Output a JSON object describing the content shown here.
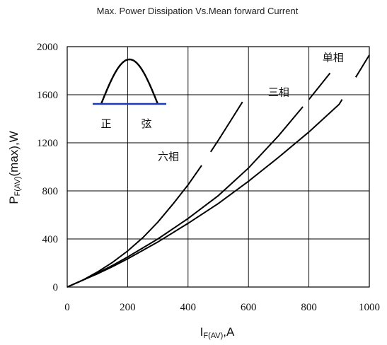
{
  "chart_data": {
    "type": "line",
    "title": "Max. Power Dissipation Vs.Mean forward Current",
    "xlabel_main": "I",
    "xlabel_sub": "F(AV)",
    "xlabel_tail": ",A",
    "ylabel_main": "P",
    "ylabel_sub": "F(AV)",
    "ylabel_tail": "(max),W",
    "xlim": [
      0,
      1000
    ],
    "ylim": [
      0,
      2000
    ],
    "xticks": [
      0,
      200,
      400,
      600,
      800,
      1000
    ],
    "yticks": [
      0,
      400,
      800,
      1200,
      1600,
      2000
    ],
    "xtick_labels": [
      "0",
      "200",
      "400",
      "600",
      "800",
      "1000"
    ],
    "ytick_labels": [
      "0",
      "400",
      "800",
      "1200",
      "1600",
      "2000"
    ],
    "grid": true,
    "series": [
      {
        "name": "单相",
        "label_at": [
          880,
          1880
        ],
        "gap": [
          910,
          955
        ],
        "points": [
          [
            0,
            0
          ],
          [
            50,
            55
          ],
          [
            100,
            110
          ],
          [
            150,
            170
          ],
          [
            200,
            235
          ],
          [
            300,
            375
          ],
          [
            400,
            530
          ],
          [
            500,
            695
          ],
          [
            600,
            880
          ],
          [
            700,
            1080
          ],
          [
            800,
            1290
          ],
          [
            900,
            1520
          ],
          [
            1000,
            1930
          ]
        ]
      },
      {
        "name": "三相",
        "label_at": [
          700,
          1590
        ],
        "gap": [
          780,
          800
        ],
        "points": [
          [
            0,
            0
          ],
          [
            50,
            55
          ],
          [
            100,
            115
          ],
          [
            150,
            180
          ],
          [
            200,
            250
          ],
          [
            300,
            400
          ],
          [
            400,
            570
          ],
          [
            500,
            760
          ],
          [
            600,
            990
          ],
          [
            700,
            1260
          ],
          [
            800,
            1560
          ],
          [
            870,
            1780
          ]
        ]
      },
      {
        "name": "六相",
        "label_at": [
          335,
          1055
        ],
        "gap": [
          445,
          475
        ],
        "points": [
          [
            0,
            0
          ],
          [
            50,
            55
          ],
          [
            100,
            125
          ],
          [
            150,
            205
          ],
          [
            200,
            300
          ],
          [
            250,
            410
          ],
          [
            300,
            540
          ],
          [
            350,
            690
          ],
          [
            400,
            850
          ],
          [
            450,
            1030
          ],
          [
            500,
            1220
          ],
          [
            550,
            1420
          ],
          [
            580,
            1540
          ]
        ]
      }
    ],
    "inset": {
      "label_left": "正",
      "label_right": "弦",
      "waveform": "sine half-wave",
      "baseline_color": "#1f3bb3"
    },
    "colors": {
      "line": "#000000",
      "grid": "#000000",
      "background": "#ffffff"
    }
  }
}
